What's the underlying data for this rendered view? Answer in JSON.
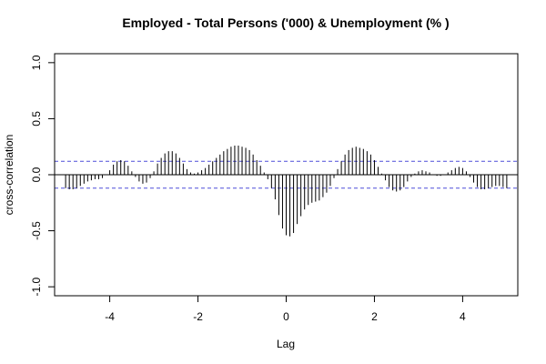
{
  "chart_data": {
    "type": "bar",
    "title": "Employed - Total Persons ('000) & Unemployment (% )",
    "xlabel": "Lag",
    "ylabel": "cross-correlation",
    "xlim": [
      -5.25,
      5.25
    ],
    "ylim": [
      -1.08,
      1.08
    ],
    "x_ticks": [
      -4,
      -2,
      0,
      2,
      4
    ],
    "x_tick_labels": [
      "-4",
      "-2",
      "0",
      "2",
      "4"
    ],
    "y_ticks": [
      -1.0,
      -0.5,
      0.0,
      0.5,
      1.0
    ],
    "y_tick_labels": [
      "-1.0",
      "-0.5",
      "0.0",
      "0.5",
      "1.0"
    ],
    "confidence_band": 0.12,
    "lag_start": -5.0,
    "lag_step": 0.0833333,
    "values": [
      -0.12,
      -0.13,
      -0.13,
      -0.12,
      -0.1,
      -0.08,
      -0.06,
      -0.05,
      -0.04,
      -0.04,
      -0.03,
      0.0,
      0.04,
      0.09,
      0.12,
      0.13,
      0.12,
      0.08,
      0.03,
      -0.02,
      -0.06,
      -0.08,
      -0.07,
      -0.03,
      0.03,
      0.1,
      0.15,
      0.19,
      0.21,
      0.21,
      0.19,
      0.15,
      0.1,
      0.05,
      0.02,
      0.01,
      0.02,
      0.04,
      0.06,
      0.09,
      0.12,
      0.15,
      0.18,
      0.21,
      0.23,
      0.25,
      0.26,
      0.26,
      0.25,
      0.24,
      0.22,
      0.18,
      0.13,
      0.08,
      0.02,
      -0.04,
      -0.12,
      -0.22,
      -0.36,
      -0.48,
      -0.54,
      -0.55,
      -0.52,
      -0.44,
      -0.37,
      -0.31,
      -0.27,
      -0.25,
      -0.24,
      -0.23,
      -0.2,
      -0.16,
      -0.1,
      -0.03,
      0.05,
      0.12,
      0.18,
      0.22,
      0.24,
      0.25,
      0.24,
      0.23,
      0.21,
      0.18,
      0.13,
      0.07,
      0.01,
      -0.05,
      -0.11,
      -0.14,
      -0.15,
      -0.14,
      -0.11,
      -0.06,
      -0.02,
      0.01,
      0.03,
      0.04,
      0.03,
      0.02,
      0.0,
      -0.01,
      -0.01,
      0.0,
      0.02,
      0.04,
      0.06,
      0.07,
      0.06,
      0.03,
      -0.02,
      -0.07,
      -0.11,
      -0.13,
      -0.13,
      -0.12,
      -0.11,
      -0.1,
      -0.1,
      -0.11,
      -0.12
    ]
  }
}
